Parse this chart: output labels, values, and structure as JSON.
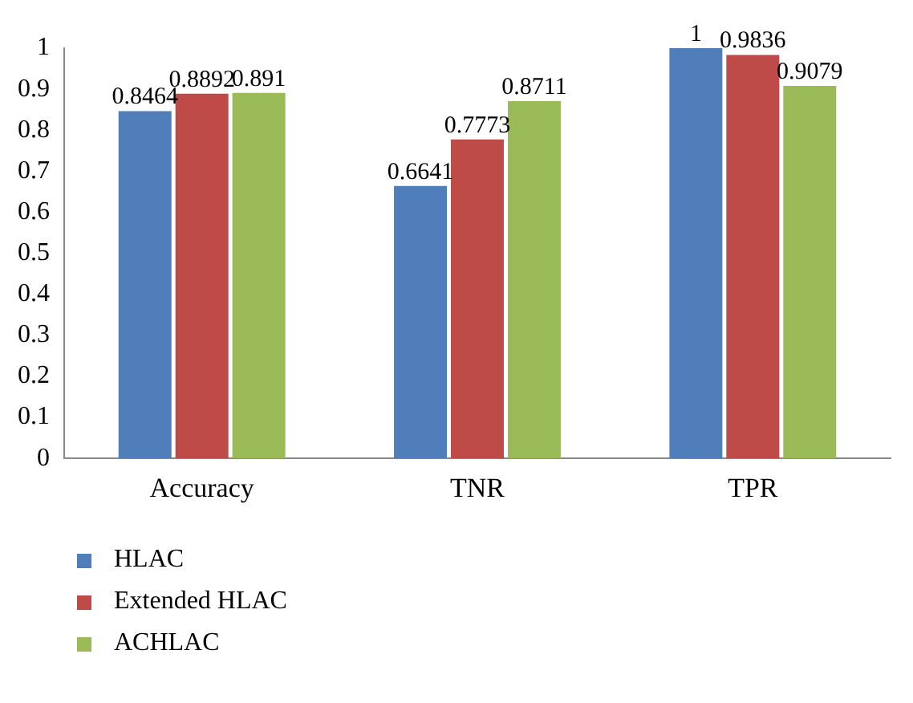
{
  "chart_data": {
    "type": "bar",
    "categories": [
      "Accuracy",
      "TNR",
      "TPR"
    ],
    "series": [
      {
        "name": "HLAC",
        "color": "#4f7ebb",
        "values": [
          0.8464,
          0.6641,
          1
        ]
      },
      {
        "name": "Extended HLAC",
        "color": "#be4b48",
        "values": [
          0.8892,
          0.7773,
          0.9836
        ]
      },
      {
        "name": "ACHLAC",
        "color": "#9bbb59",
        "values": [
          0.891,
          0.8711,
          0.9079
        ]
      }
    ],
    "ylim": [
      0,
      1
    ],
    "yticks": [
      0,
      0.1,
      0.2,
      0.3,
      0.4,
      0.5,
      0.6,
      0.7,
      0.8,
      0.9,
      1
    ],
    "grid": false,
    "legend": "bottom left",
    "data_labels": true
  }
}
